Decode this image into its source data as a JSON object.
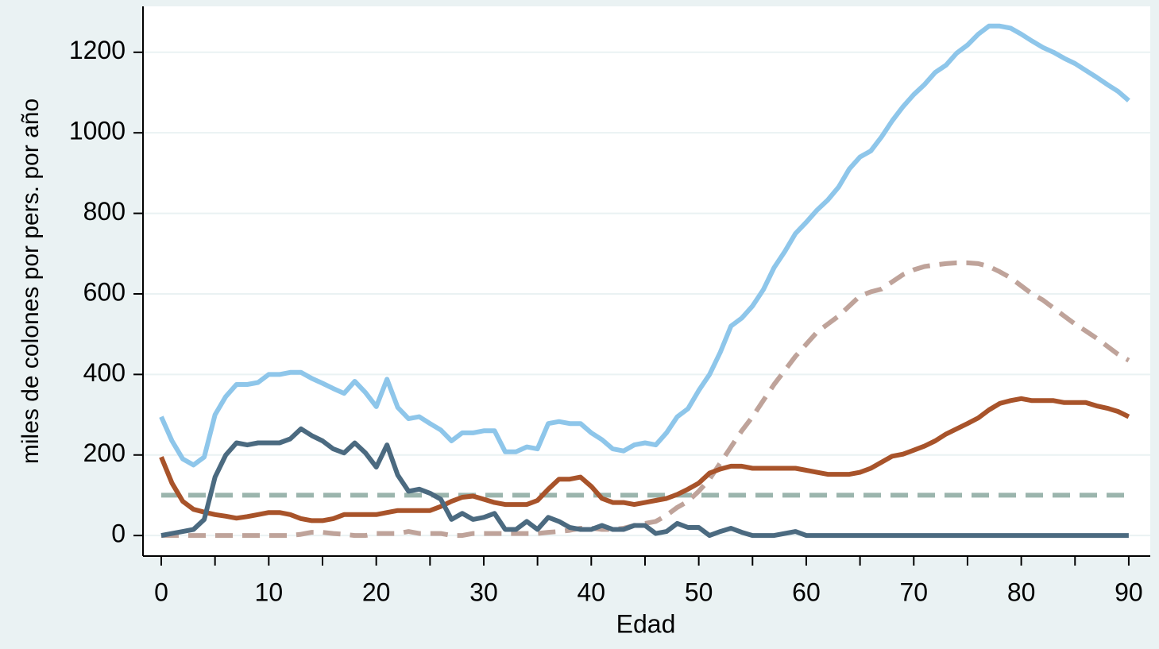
{
  "chart_data": {
    "type": "line",
    "x_label": "Edad",
    "y_label": "miles de colones por pers. por año",
    "x": [
      0,
      1,
      2,
      3,
      4,
      5,
      6,
      7,
      8,
      9,
      10,
      11,
      12,
      13,
      14,
      15,
      16,
      17,
      18,
      19,
      20,
      21,
      22,
      23,
      24,
      25,
      26,
      27,
      28,
      29,
      30,
      31,
      32,
      33,
      34,
      35,
      36,
      37,
      38,
      39,
      40,
      41,
      42,
      43,
      44,
      45,
      46,
      47,
      48,
      49,
      50,
      51,
      52,
      53,
      54,
      55,
      56,
      57,
      58,
      59,
      60,
      61,
      62,
      63,
      64,
      65,
      66,
      67,
      68,
      69,
      70,
      71,
      72,
      73,
      74,
      75,
      76,
      77,
      78,
      79,
      80,
      81,
      82,
      83,
      84,
      85,
      86,
      87,
      88,
      89,
      90
    ],
    "series": [
      {
        "color": "#9bb5ad",
        "dashed": true,
        "values": [
          100,
          100,
          100,
          100,
          100,
          100,
          100,
          100,
          100,
          100,
          100,
          100,
          100,
          100,
          100,
          100,
          100,
          100,
          100,
          100,
          100,
          100,
          100,
          100,
          100,
          100,
          100,
          100,
          100,
          100,
          100,
          100,
          100,
          100,
          100,
          100,
          100,
          100,
          100,
          100,
          100,
          100,
          100,
          100,
          100,
          100,
          100,
          100,
          100,
          100,
          100,
          100,
          100,
          100,
          100,
          100,
          100,
          100,
          100,
          100,
          100,
          100,
          100,
          100,
          100,
          100,
          100,
          100,
          100,
          100,
          100,
          100,
          100,
          100,
          100,
          100,
          100,
          100,
          100,
          100,
          100,
          100,
          100,
          100,
          100,
          100,
          100,
          100,
          100,
          100,
          100
        ]
      },
      {
        "color": "#bfa39a",
        "dashed": true,
        "values": [
          0,
          0,
          0,
          0,
          0,
          0,
          0,
          0,
          0,
          0,
          0,
          0,
          0,
          3,
          8,
          8,
          5,
          3,
          0,
          0,
          5,
          5,
          5,
          10,
          5,
          5,
          5,
          0,
          0,
          5,
          5,
          5,
          5,
          5,
          5,
          5,
          8,
          10,
          13,
          18,
          18,
          15,
          15,
          18,
          25,
          30,
          35,
          50,
          70,
          85,
          110,
          140,
          180,
          220,
          260,
          295,
          335,
          375,
          410,
          445,
          475,
          505,
          525,
          545,
          570,
          595,
          605,
          612,
          630,
          648,
          660,
          668,
          672,
          675,
          677,
          677,
          675,
          668,
          655,
          640,
          620,
          600,
          585,
          565,
          545,
          525,
          508,
          490,
          470,
          450,
          435
        ]
      },
      {
        "color": "#a8532a",
        "dashed": false,
        "values": [
          195,
          130,
          85,
          65,
          58,
          52,
          48,
          43,
          47,
          52,
          57,
          57,
          52,
          42,
          37,
          37,
          42,
          52,
          52,
          52,
          52,
          57,
          62,
          62,
          62,
          62,
          72,
          85,
          95,
          98,
          90,
          82,
          77,
          77,
          77,
          87,
          115,
          140,
          140,
          145,
          122,
          92,
          82,
          82,
          77,
          82,
          87,
          92,
          102,
          115,
          130,
          155,
          165,
          172,
          172,
          167,
          167,
          167,
          167,
          167,
          162,
          157,
          152,
          152,
          152,
          157,
          167,
          182,
          197,
          202,
          212,
          222,
          235,
          252,
          265,
          278,
          292,
          312,
          328,
          335,
          340,
          335,
          335,
          335,
          330,
          330,
          330,
          322,
          316,
          308,
          295
        ]
      },
      {
        "color": "#4b6a80",
        "dashed": false,
        "values": [
          0,
          5,
          10,
          15,
          40,
          145,
          200,
          230,
          225,
          230,
          230,
          230,
          240,
          265,
          248,
          235,
          215,
          205,
          230,
          205,
          170,
          225,
          150,
          110,
          115,
          105,
          90,
          40,
          55,
          40,
          45,
          55,
          15,
          15,
          35,
          15,
          45,
          35,
          20,
          15,
          15,
          25,
          15,
          15,
          25,
          25,
          5,
          10,
          30,
          20,
          20,
          0,
          10,
          18,
          8,
          0,
          0,
          0,
          5,
          10,
          0,
          0,
          0,
          0,
          0,
          0,
          0,
          0,
          0,
          0,
          0,
          0,
          0,
          0,
          0,
          0,
          0,
          0,
          0,
          0,
          0,
          0,
          0,
          0,
          0,
          0,
          0,
          0,
          0,
          0,
          0
        ]
      },
      {
        "color": "#8ec6ea",
        "dashed": false,
        "values": [
          295,
          235,
          190,
          175,
          195,
          300,
          345,
          375,
          375,
          380,
          400,
          400,
          405,
          405,
          390,
          378,
          365,
          353,
          383,
          355,
          320,
          388,
          318,
          290,
          295,
          278,
          262,
          235,
          255,
          255,
          260,
          260,
          208,
          208,
          220,
          215,
          278,
          283,
          278,
          278,
          255,
          238,
          215,
          210,
          225,
          230,
          225,
          255,
          295,
          315,
          360,
          400,
          455,
          520,
          540,
          570,
          610,
          665,
          705,
          750,
          778,
          808,
          833,
          865,
          910,
          940,
          955,
          990,
          1030,
          1065,
          1095,
          1120,
          1150,
          1168,
          1198,
          1218,
          1245,
          1265,
          1265,
          1260,
          1245,
          1228,
          1212,
          1200,
          1185,
          1172,
          1155,
          1138,
          1120,
          1103,
          1080
        ]
      }
    ],
    "xlim": [
      -1.7,
      92
    ],
    "ylim": [
      -51,
      1314
    ],
    "xticks": [
      0,
      10,
      20,
      30,
      40,
      50,
      60,
      70,
      80,
      90
    ],
    "xminorticks": [
      5,
      15,
      25,
      35,
      45,
      55,
      65,
      75,
      85
    ],
    "yticks": [
      0,
      200,
      400,
      600,
      800,
      1000,
      1200
    ],
    "grid": true
  }
}
